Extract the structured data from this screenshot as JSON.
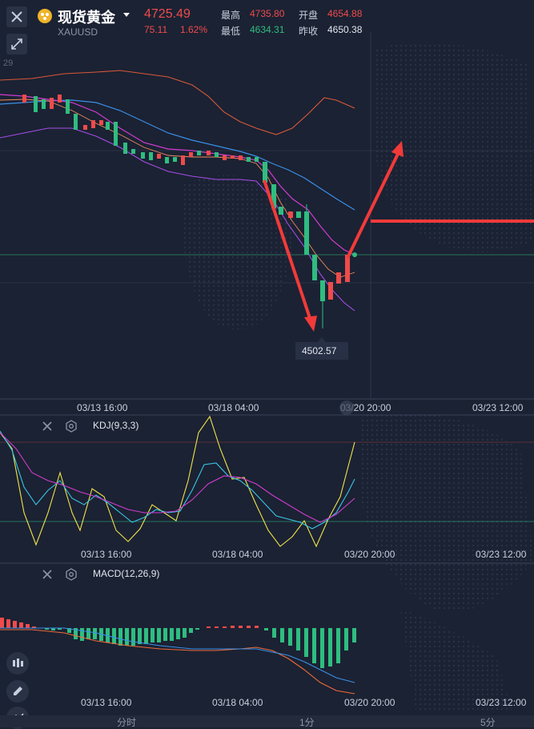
{
  "header": {
    "title": "现货黄金",
    "symbol": "XAUUSD",
    "price": "4725.49",
    "change": "75.11",
    "change_pct": "1.62%",
    "stats": {
      "high_label": "最高",
      "high_value": "4735.80",
      "open_label": "开盘",
      "open_value": "4654.88",
      "low_label": "最低",
      "low_value": "4634.31",
      "prev_close_label": "昨收",
      "prev_close_value": "4650.38"
    }
  },
  "main_chart": {
    "y_tick_partial": "29",
    "low_marker": "4502.57",
    "x_ticks": [
      "03/13 16:00",
      "03/18 04:00",
      "03/20 20:00",
      "03/23 12:00"
    ]
  },
  "kdj": {
    "label": "KDJ(9,3,3)",
    "x_ticks": [
      "03/13 16:00",
      "03/18 04:00",
      "03/20 20:00",
      "03/23 12:00"
    ]
  },
  "macd": {
    "label": "MACD(12,26,9)",
    "x_ticks": [
      "03/13 16:00",
      "03/18 04:00",
      "03/20 20:00",
      "03/23 12:00"
    ]
  },
  "bottom_tabs": [
    "分时",
    "1分",
    "5分"
  ],
  "colors": {
    "up": "#ef4b4b",
    "down": "#2fbd80",
    "background": "#1b2233",
    "annotation": "#f23a3a"
  }
}
